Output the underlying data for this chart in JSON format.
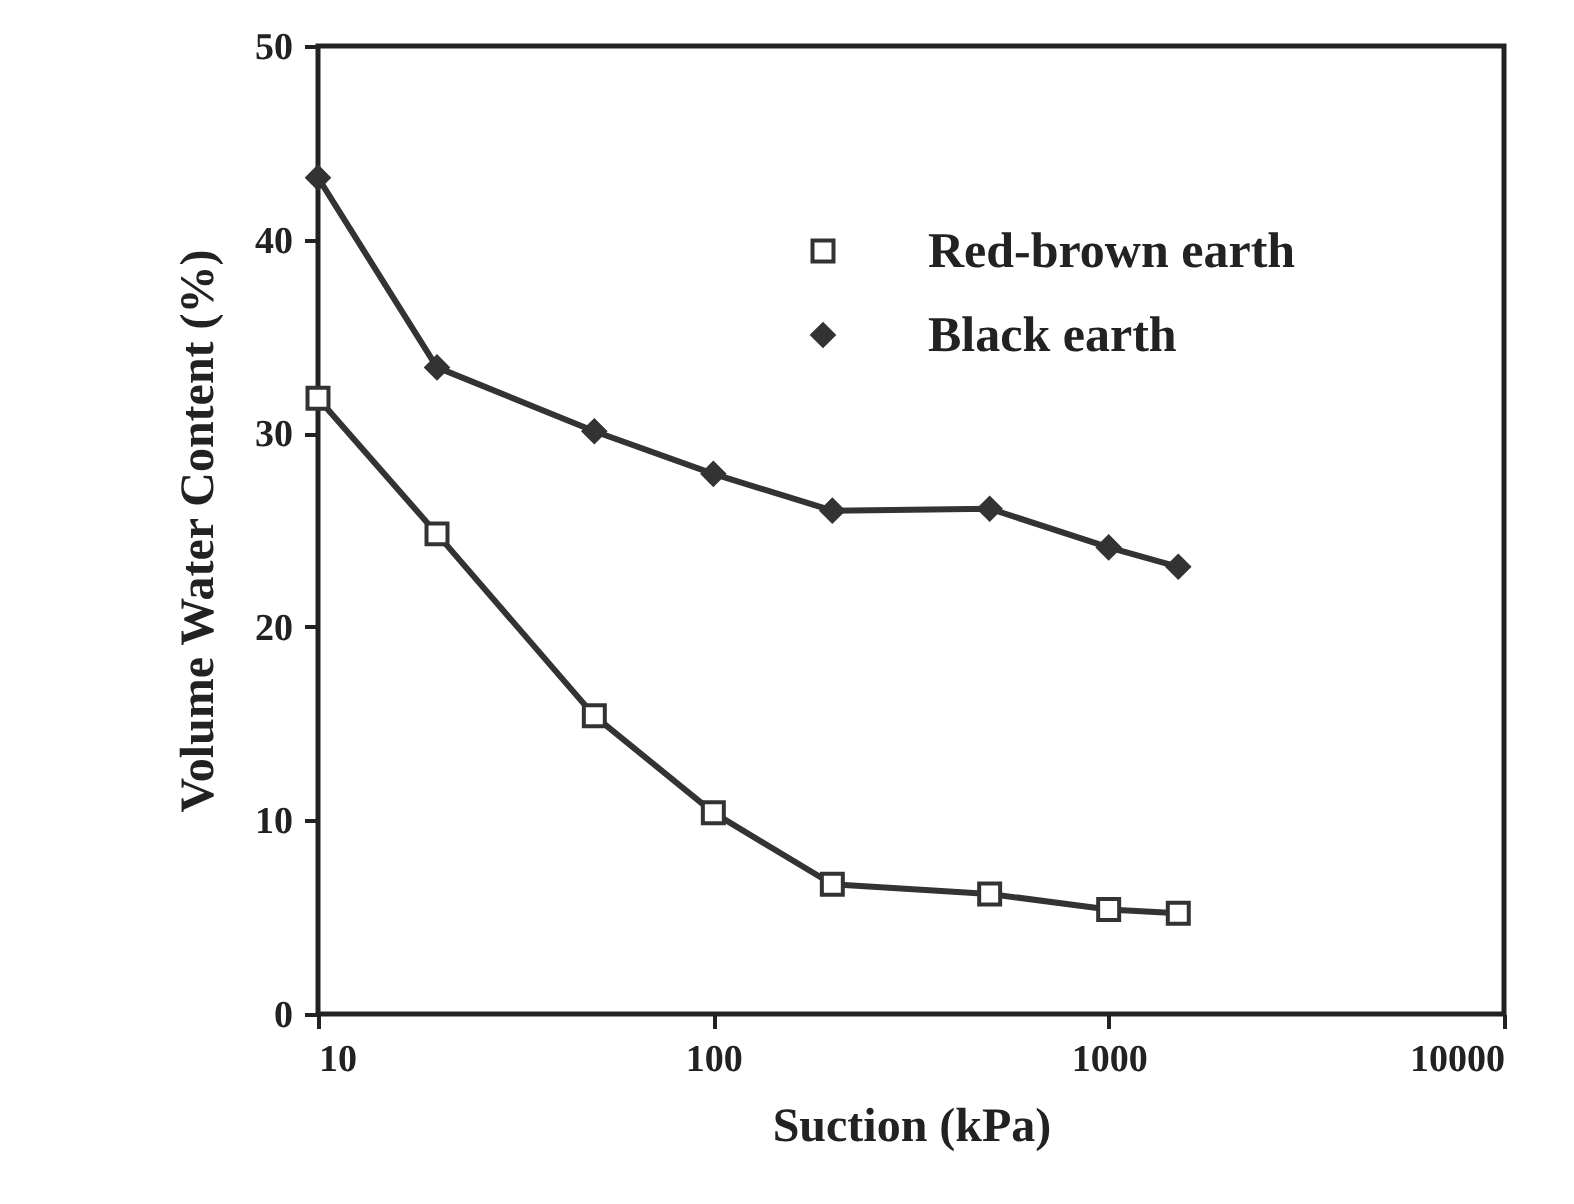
{
  "chart_data": {
    "type": "line",
    "xlabel": "Suction (kPa)",
    "ylabel": "Volume Water Content (%)",
    "x": [
      10,
      20,
      50,
      100,
      200,
      500,
      1000,
      1500
    ],
    "series": [
      {
        "name": "Red-brown earth",
        "color": "#333333",
        "marker": "square",
        "values": [
          31.8,
          24.8,
          15.4,
          10.4,
          6.7,
          6.2,
          5.4,
          5.2
        ]
      },
      {
        "name": "Black earth",
        "color": "#333333",
        "marker": "diamond",
        "values": [
          43.2,
          33.4,
          30.1,
          27.9,
          26.0,
          26.1,
          24.1,
          23.1
        ]
      }
    ],
    "log": "x",
    "xlim": [
      10,
      10000
    ],
    "xticks": [
      10,
      100,
      1000,
      10000
    ],
    "ylim": [
      0,
      50
    ],
    "yticks": [
      0,
      10,
      20,
      30,
      40,
      50
    ],
    "grid": false,
    "legend": "top right"
  }
}
